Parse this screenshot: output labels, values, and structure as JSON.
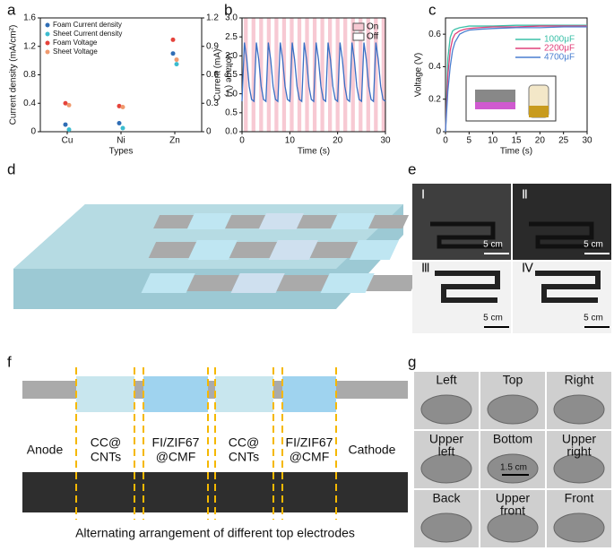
{
  "panels": [
    "a",
    "b",
    "c",
    "d",
    "e",
    "f",
    "g"
  ],
  "chart_data": [
    {
      "type": "scatter",
      "categories": [
        "Cu",
        "Ni",
        "Zn"
      ],
      "xlabel": "Types",
      "ylabel": "Current density (mA/cm²)",
      "y2label": "Voltage (V)",
      "ylim": [
        0,
        1.6
      ],
      "yticks": [
        0,
        0.4,
        0.8,
        1.2,
        1.6
      ],
      "y2lim": [
        0,
        1.2
      ],
      "y2ticks": [
        0,
        0.3,
        0.6,
        0.9,
        1.2
      ],
      "legend": "upper left",
      "series": [
        {
          "name": "Foam Current density",
          "color": "#2f6db5",
          "values": [
            0.1,
            0.12,
            1.1
          ]
        },
        {
          "name": "Sheet Current density",
          "color": "#3bbccf",
          "values": [
            0.03,
            0.05,
            0.95
          ]
        },
        {
          "name": "Foam Voltage",
          "color": "#e5433b",
          "axis": "y2",
          "values": [
            0.3,
            0.27,
            0.97
          ]
        },
        {
          "name": "Sheet Voltage",
          "color": "#f09a6e",
          "axis": "y2",
          "values": [
            0.28,
            0.26,
            0.76
          ]
        }
      ]
    },
    {
      "type": "line",
      "xlabel": "Time (s)",
      "ylabel": "Current (mA)",
      "xlim": [
        0,
        30
      ],
      "xticks": [
        0,
        10,
        20,
        30
      ],
      "ylim": [
        0,
        3
      ],
      "yticks": [
        {
          "value": 0,
          "label": "0.0"
        },
        {
          "value": 0.5,
          "label": "0.5"
        },
        {
          "value": 1,
          "label": "1.0"
        },
        {
          "value": 1.5,
          "label": "1.5"
        },
        {
          "value": 2,
          "label": "2.0"
        },
        {
          "value": 2.5,
          "label": "2.5"
        },
        {
          "value": 3,
          "label": "3.0"
        }
      ],
      "legend": "upper right",
      "band_names": [
        "On",
        "Off"
      ],
      "band_colors": [
        "#f7c9d3",
        "#ffffff"
      ],
      "on_periods": [
        [
          0.4,
          1.2
        ],
        [
          2.0,
          2.8
        ],
        [
          3.6,
          4.4
        ],
        [
          5.2,
          6.0
        ],
        [
          6.8,
          7.6
        ],
        [
          8.4,
          9.2
        ],
        [
          10.0,
          10.8
        ],
        [
          11.6,
          12.4
        ],
        [
          13.2,
          14.0
        ],
        [
          14.8,
          15.6
        ],
        [
          16.4,
          17.2
        ],
        [
          18.0,
          18.8
        ],
        [
          19.6,
          20.4
        ],
        [
          21.2,
          22.0
        ],
        [
          22.8,
          23.6
        ],
        [
          24.4,
          25.2
        ],
        [
          26.0,
          26.8
        ],
        [
          27.6,
          28.4
        ],
        [
          29.2,
          30.0
        ]
      ],
      "x": [
        0,
        0.5,
        1,
        1.5,
        2,
        2.5,
        3,
        3.5,
        4,
        4.5,
        5,
        5.5,
        6,
        6.5,
        7,
        7.5,
        8,
        8.5,
        9,
        9.5,
        10,
        10.5,
        11,
        11.5,
        12,
        12.5,
        13,
        13.5,
        14,
        14.5,
        15,
        15.5,
        16,
        16.5,
        17,
        17.5,
        18,
        18.5,
        19,
        19.5,
        20,
        20.5,
        21,
        21.5,
        22,
        22.5,
        23,
        23.5,
        24,
        24.5,
        25,
        25.5,
        26,
        26.5,
        27,
        27.5,
        28,
        28.5,
        29,
        29.5,
        30
      ],
      "series": [
        {
          "color": "#3a6fc4",
          "values": [
            0.8,
            2.35,
            1.9,
            1.2,
            0.85,
            0.8,
            2.35,
            1.9,
            1.2,
            0.85,
            0.8,
            2.35,
            1.9,
            1.2,
            0.85,
            0.8,
            2.35,
            1.9,
            1.2,
            0.85,
            0.8,
            2.35,
            1.9,
            1.2,
            0.85,
            0.8,
            2.35,
            1.9,
            1.2,
            0.85,
            0.8,
            2.35,
            1.9,
            1.2,
            0.85,
            0.8,
            2.35,
            1.9,
            1.2,
            0.85,
            0.8,
            2.35,
            1.9,
            1.2,
            0.85,
            0.8,
            2.35,
            1.9,
            1.2,
            0.85,
            0.8,
            2.35,
            1.9,
            1.2,
            0.85,
            0.8,
            2.35,
            1.9,
            1.2,
            0.85,
            0.8
          ]
        }
      ]
    },
    {
      "type": "line",
      "xlabel": "Time (s)",
      "ylabel": "Voltage (V)",
      "xlim": [
        0,
        30
      ],
      "xticks": [
        0,
        5,
        10,
        15,
        20,
        25,
        30
      ],
      "ylim": [
        0,
        0.7
      ],
      "yticks": [
        0,
        {
          "value": 0.2,
          "label": "0.2"
        },
        {
          "value": 0.4,
          "label": "0.4"
        },
        {
          "value": 0.6,
          "label": "0.6"
        }
      ],
      "legend": "center right",
      "x": [
        0,
        0.5,
        1,
        1.5,
        2,
        3,
        4,
        5,
        7,
        10,
        15,
        20,
        25,
        30
      ],
      "series": [
        {
          "name": "1000μF",
          "color": "#3cc0a8",
          "values": [
            0,
            0.45,
            0.58,
            0.62,
            0.63,
            0.64,
            0.645,
            0.65,
            0.65,
            0.65,
            0.655,
            0.655,
            0.655,
            0.655
          ]
        },
        {
          "name": "2200μF",
          "color": "#e0407a",
          "values": [
            0,
            0.35,
            0.5,
            0.57,
            0.6,
            0.62,
            0.63,
            0.635,
            0.64,
            0.645,
            0.645,
            0.65,
            0.65,
            0.65
          ]
        },
        {
          "name": "4700μF",
          "color": "#4a7fd0",
          "values": [
            0,
            0.25,
            0.4,
            0.5,
            0.55,
            0.6,
            0.615,
            0.625,
            0.63,
            0.635,
            0.64,
            0.64,
            0.645,
            0.645
          ]
        }
      ]
    }
  ],
  "panel_e": {
    "labels": [
      "Ⅰ",
      "Ⅱ",
      "Ⅲ",
      "Ⅳ"
    ],
    "scale_bars": [
      "5 cm",
      "5 cm",
      "5 cm",
      "5 cm"
    ]
  },
  "panel_f": {
    "labels": [
      [
        "Anode"
      ],
      [
        "CC@",
        "CNTs"
      ],
      [
        "FI/ZIF67",
        "@CMF"
      ],
      [
        "CC@",
        "CNTs"
      ],
      [
        "FI/ZIF67",
        "@CMF"
      ],
      [
        "Cathode"
      ]
    ],
    "caption": "Alternating arrangement of different top electrodes"
  },
  "panel_g": {
    "labels": [
      [
        "Left"
      ],
      [
        "Top"
      ],
      [
        "Right"
      ],
      [
        "Upper",
        "left"
      ],
      [
        "Bottom"
      ],
      [
        "Upper",
        "right"
      ],
      [
        "Back"
      ],
      [
        "Upper",
        "front"
      ],
      [
        "Front"
      ]
    ],
    "scale_bar": "1.5 cm"
  }
}
